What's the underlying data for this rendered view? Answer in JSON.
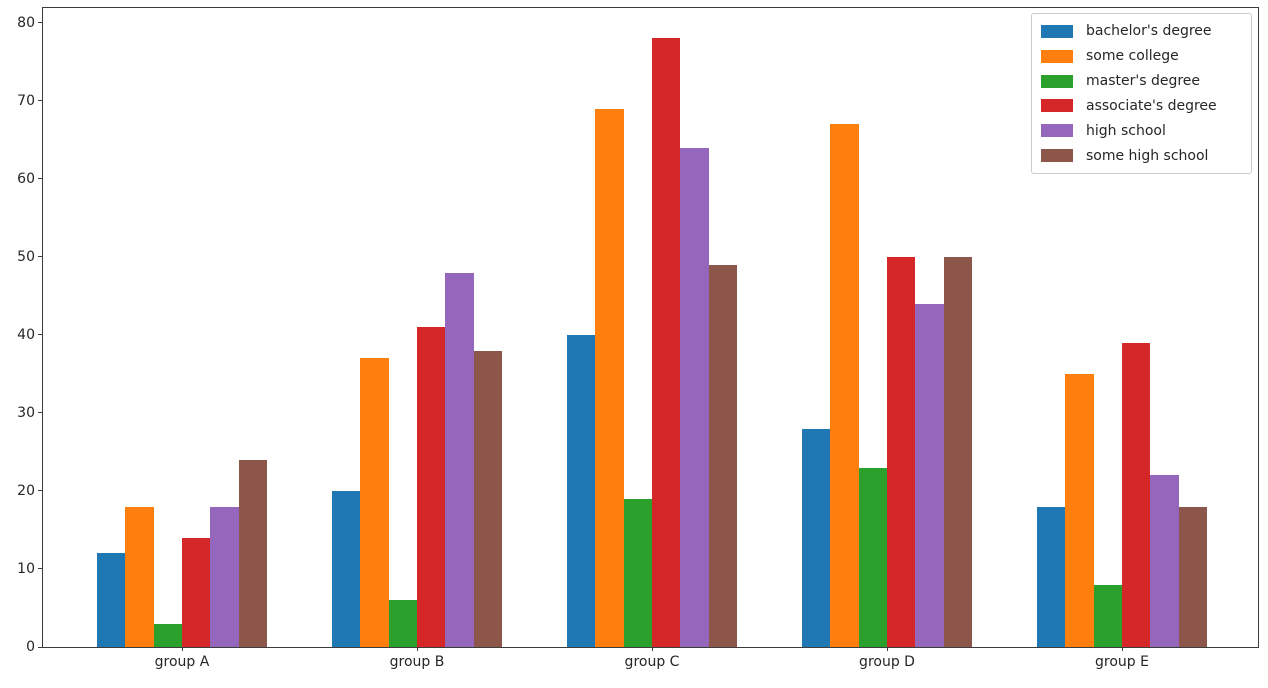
{
  "figure": {
    "background": "#ffffff",
    "axis_color": "#3c3c3c",
    "text_color": "#262626",
    "legend_border_color": "#cccccc"
  },
  "chart_data": {
    "type": "bar",
    "title": "",
    "xlabel": "",
    "ylabel": "",
    "categories": [
      "group A",
      "group B",
      "group C",
      "group D",
      "group E"
    ],
    "series": [
      {
        "name": "bachelor's degree",
        "color": "#1f77b4",
        "values": [
          12,
          20,
          40,
          28,
          18
        ]
      },
      {
        "name": "some college",
        "color": "#ff7f0e",
        "values": [
          18,
          37,
          69,
          67,
          35
        ]
      },
      {
        "name": "master's degree",
        "color": "#2ca02c",
        "values": [
          3,
          6,
          19,
          23,
          8
        ]
      },
      {
        "name": "associate's degree",
        "color": "#d62728",
        "values": [
          14,
          41,
          78,
          50,
          39
        ]
      },
      {
        "name": "high school",
        "color": "#9467bd",
        "values": [
          18,
          48,
          64,
          44,
          22
        ]
      },
      {
        "name": "some high school",
        "color": "#8c564b",
        "values": [
          24,
          38,
          49,
          50,
          18
        ]
      }
    ],
    "ylim": [
      0,
      81.9
    ],
    "yticks": [
      0,
      10,
      20,
      30,
      40,
      50,
      60,
      70,
      80
    ],
    "grid": false,
    "legend_position": "upper right"
  }
}
